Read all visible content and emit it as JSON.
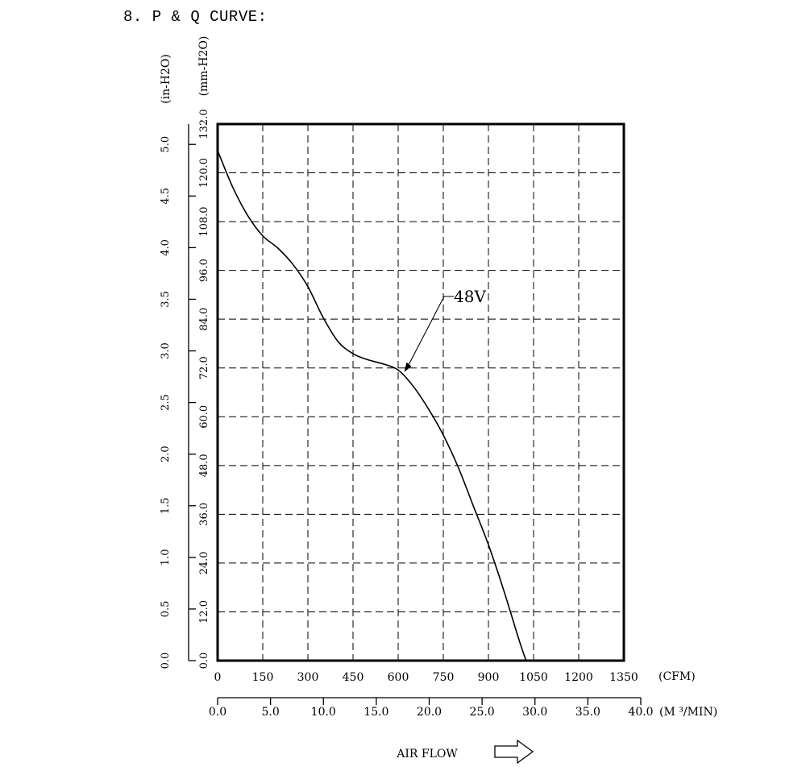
{
  "page": {
    "title": "8. P & Q CURVE:"
  },
  "chart_data": {
    "type": "line",
    "xlabel": "AIR FLOW",
    "x_unit_primary": "(CFM)",
    "x_unit_secondary": "(M ³/MIN)",
    "y_unit_primary": "(mm-H2O)",
    "y_unit_secondary": "(in-H2O)",
    "xlim": [
      0,
      1350
    ],
    "ylim": [
      0,
      132
    ],
    "x_ticks_cfm": [
      "0",
      "150",
      "300",
      "450",
      "600",
      "750",
      "900",
      "1050",
      "1200",
      "1350"
    ],
    "x_ticks_m3min": [
      "0.0",
      "5.0",
      "10.0",
      "15.0",
      "20.0",
      "25.0",
      "30.0",
      "35.0",
      "40.0"
    ],
    "y_ticks_mm": [
      "0.0",
      "12.0",
      "24.0",
      "36.0",
      "48.0",
      "60.0",
      "72.0",
      "84.0",
      "96.0",
      "108.0",
      "120.0",
      "132.0"
    ],
    "y_ticks_in": [
      "0.0",
      "0.5",
      "1.0",
      "1.5",
      "2.0",
      "2.5",
      "3.0",
      "3.5",
      "4.0",
      "4.5",
      "5.0"
    ],
    "grid": true,
    "series": [
      {
        "name": "48V",
        "x": [
          0,
          50,
          100,
          150,
          200,
          250,
          300,
          350,
          400,
          450,
          500,
          550,
          600,
          650,
          700,
          750,
          800,
          850,
          900,
          950,
          1000,
          1025
        ],
        "y": [
          125.5,
          116.5,
          109.5,
          104.5,
          101.5,
          97.5,
          92.0,
          84.5,
          78.5,
          75.5,
          74.0,
          73.0,
          71.5,
          67.5,
          62.0,
          55.5,
          47.5,
          38.0,
          28.5,
          17.5,
          5.5,
          0
        ]
      }
    ],
    "annotations": [
      {
        "text": "48V",
        "x": 620,
        "y": 71
      }
    ],
    "flow_arrow": "right-arrow"
  }
}
